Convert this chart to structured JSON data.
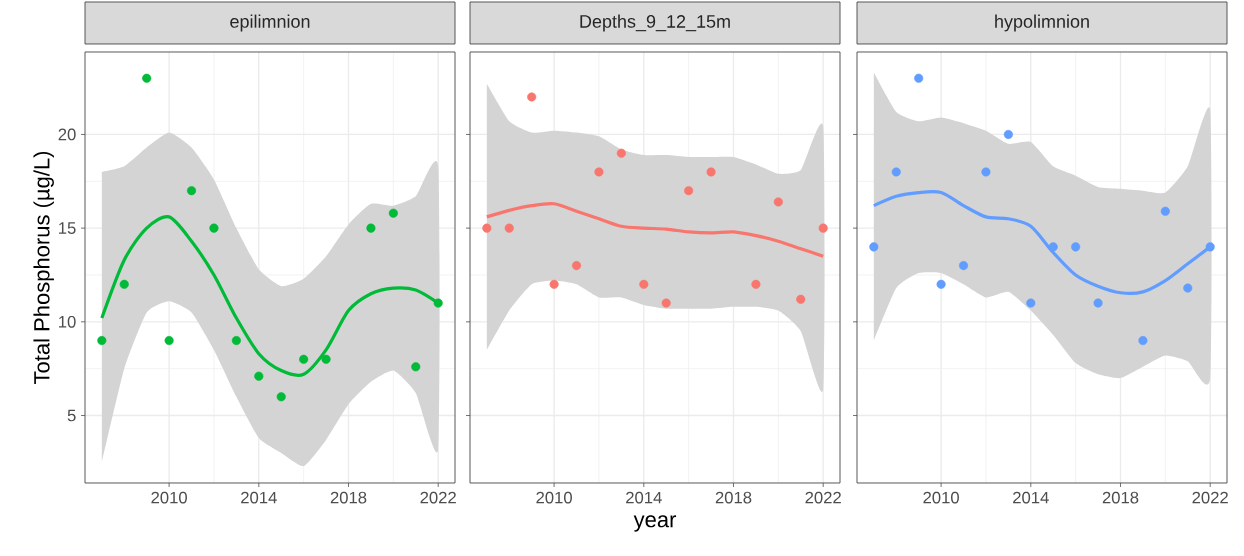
{
  "chart_data": [
    {
      "type": "scatter",
      "title": "epilimnion",
      "ylabel": "Total Phosphorus (µg/L)",
      "xlim": [
        2006.25,
        2022.75
      ],
      "ylim": [
        1.4,
        24.4
      ],
      "xticks": [
        2010,
        2014,
        2018,
        2022
      ],
      "yticks": [
        5,
        10,
        15,
        20
      ],
      "grid": true,
      "series": [
        {
          "marker": "circle",
          "color": "#00ba38",
          "x": [
            2007,
            2008,
            2009,
            2010,
            2011,
            2012,
            2013,
            2014,
            2015,
            2016,
            2017,
            2019,
            2020,
            2021,
            2022
          ],
          "values": [
            9,
            12,
            23,
            9,
            17,
            15,
            9,
            7.1,
            6,
            8,
            8,
            15,
            15.8,
            7.6,
            11
          ]
        },
        {
          "type": "line",
          "marker": "none",
          "color": "#00ba38",
          "x": [
            2007,
            2008,
            2009,
            2010,
            2011,
            2012,
            2013,
            2014,
            2015,
            2016,
            2017,
            2018,
            2019,
            2020,
            2021,
            2022
          ],
          "values": [
            10.2,
            13.3,
            15,
            15.6,
            14.3,
            12.5,
            10.2,
            8.3,
            7.4,
            7.2,
            8.5,
            10.6,
            11.5,
            11.8,
            11.7,
            11
          ],
          "upper": [
            18,
            18.3,
            19.3,
            20.1,
            19.3,
            17.6,
            15,
            12.8,
            11.9,
            12.3,
            13.5,
            15.2,
            16.3,
            16.2,
            16.7,
            18.3
          ],
          "lower": [
            2.5,
            7.5,
            10.5,
            11.1,
            10.5,
            8.5,
            6,
            3.8,
            3,
            2.3,
            3.7,
            5.6,
            6.8,
            7.4,
            6.2,
            3.2
          ]
        }
      ]
    },
    {
      "type": "scatter",
      "title": "Depths_9_12_15m",
      "xlabel": "year",
      "xlim": [
        2006.25,
        2022.75
      ],
      "ylim": [
        1.4,
        24.4
      ],
      "xticks": [
        2010,
        2014,
        2018,
        2022
      ],
      "yticks": [
        5,
        10,
        15,
        20
      ],
      "grid": true,
      "tick_labels": "x",
      "series": [
        {
          "marker": "circle",
          "color": "#f8766d",
          "x": [
            2007,
            2008,
            2009,
            2010,
            2011,
            2012,
            2013,
            2014,
            2015,
            2016,
            2017,
            2019,
            2020,
            2021,
            2022
          ],
          "values": [
            15,
            15,
            22,
            12,
            13,
            18,
            19,
            12,
            11,
            17,
            18,
            12,
            16.4,
            11.2,
            15
          ]
        },
        {
          "type": "line",
          "marker": "none",
          "color": "#f8766d",
          "x": [
            2007,
            2008,
            2009,
            2010,
            2011,
            2012,
            2013,
            2014,
            2015,
            2016,
            2017,
            2018,
            2019,
            2020,
            2021,
            2022
          ],
          "values": [
            15.6,
            15.95,
            16.2,
            16.3,
            15.9,
            15.5,
            15.1,
            15,
            14.95,
            14.8,
            14.75,
            14.8,
            14.6,
            14.3,
            13.9,
            13.5
          ],
          "upper": [
            22.7,
            20.7,
            20.1,
            20.2,
            20.1,
            19.9,
            19.2,
            18.9,
            18.9,
            18.8,
            18.8,
            18.8,
            18.4,
            17.9,
            18.1,
            20.4
          ],
          "lower": [
            8.5,
            10.6,
            12,
            12.2,
            12,
            11.3,
            11.3,
            10.9,
            10.7,
            10.7,
            10.7,
            10.8,
            10.8,
            10.6,
            9.5,
            6.4
          ]
        }
      ]
    },
    {
      "type": "scatter",
      "title": "hypolimnion",
      "xlim": [
        2006.25,
        2022.75
      ],
      "ylim": [
        1.4,
        24.4
      ],
      "xticks": [
        2010,
        2014,
        2018,
        2022
      ],
      "yticks": [
        5,
        10,
        15,
        20
      ],
      "grid": true,
      "tick_labels": "x",
      "series": [
        {
          "marker": "circle",
          "color": "#619cff",
          "x": [
            2007,
            2008,
            2009,
            2010,
            2011,
            2012,
            2013,
            2014,
            2015,
            2016,
            2017,
            2019,
            2020,
            2021,
            2022
          ],
          "values": [
            14,
            18,
            23,
            12,
            13,
            18,
            20,
            11,
            14,
            14,
            11,
            9,
            15.9,
            11.8,
            14
          ]
        },
        {
          "type": "line",
          "marker": "none",
          "color": "#619cff",
          "x": [
            2007,
            2008,
            2009,
            2010,
            2011,
            2012,
            2013,
            2014,
            2015,
            2016,
            2017,
            2018,
            2019,
            2020,
            2021,
            2022
          ],
          "values": [
            16.2,
            16.7,
            16.9,
            16.9,
            16.2,
            15.6,
            15.5,
            15.1,
            13.7,
            12.5,
            11.9,
            11.55,
            11.6,
            12.2,
            13.1,
            14
          ],
          "upper": [
            23.3,
            21.2,
            20.7,
            20.9,
            20.6,
            20.2,
            19.5,
            19.6,
            18.3,
            17.8,
            17.2,
            17.1,
            17,
            16.9,
            18.3,
            21.3
          ],
          "lower": [
            9,
            11.8,
            12.6,
            12.6,
            12,
            11.3,
            11.6,
            10.6,
            9.3,
            7.8,
            7.2,
            7,
            7.6,
            8.2,
            7.9,
            7
          ]
        }
      ]
    }
  ]
}
